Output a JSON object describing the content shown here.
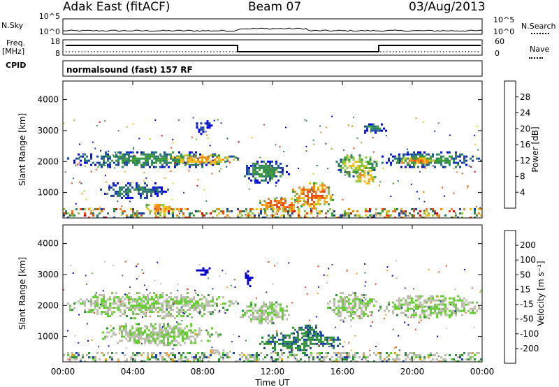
{
  "header": {
    "station": "Adak East (fitACF)",
    "beam": "Beam 07",
    "date": "03/Aug/2013"
  },
  "panels": {
    "nsky_label": "N.Sky",
    "nsearch_label": "N.Search",
    "noise_ticks": [
      "10^5",
      "10^0"
    ],
    "freq_label_1": "Freq.",
    "freq_label_2": "[MHz]",
    "freq_ticks": [
      "18",
      "8"
    ],
    "nave_label": "Nave",
    "nave_ticks": [
      "60",
      "0"
    ],
    "cpid_label": "CPID",
    "cpid_value": "normalsound (fast) 157 RF"
  },
  "colors": {
    "power": [
      "#0000ee",
      "#1a3fa8",
      "#2f7a6e",
      "#3a9a3a",
      "#8cc63f",
      "#f0c020",
      "#f08a10",
      "#f04a10",
      "#e00000"
    ],
    "velocity": [
      "#e00000",
      "#f04a10",
      "#f0a020",
      "#bdbdb0",
      "#bdbdb0",
      "#66cc33",
      "#2f8f3a",
      "#1a3fa8",
      "#0000cc"
    ],
    "ground_scatter": "#b8b8b0"
  },
  "chart_data": [
    {
      "type": "heatmap",
      "panel": "power",
      "ylabel": "Slant Range [km]",
      "ylim": [
        180,
        4600
      ],
      "yticks": [
        "1000",
        "2000",
        "3000",
        "4000"
      ],
      "colorbar_label": "Power [dB]",
      "colorbar_ticks": [
        "4",
        "8",
        "12",
        "16",
        "20",
        "24",
        "28"
      ],
      "colorbar_range": [
        0,
        32
      ],
      "echo_bands": [
        {
          "t": [
            0,
            10
          ],
          "range": [
            1800,
            2400
          ],
          "value": 12
        },
        {
          "t": [
            6,
            10
          ],
          "range": [
            1900,
            2300
          ],
          "value": 22
        },
        {
          "t": [
            2,
            6
          ],
          "range": [
            800,
            1400
          ],
          "value": 10
        },
        {
          "t": [
            4.5,
            6.5
          ],
          "range": [
            350,
            700
          ],
          "value": 24
        },
        {
          "t": [
            10,
            13
          ],
          "range": [
            1300,
            2100
          ],
          "value": 12
        },
        {
          "t": [
            11,
            14
          ],
          "range": [
            400,
            900
          ],
          "value": 26
        },
        {
          "t": [
            13,
            15.5
          ],
          "range": [
            500,
            1400
          ],
          "value": 26
        },
        {
          "t": [
            15.5,
            18
          ],
          "range": [
            1500,
            2300
          ],
          "value": 18
        },
        {
          "t": [
            16.5,
            18
          ],
          "range": [
            1300,
            1800
          ],
          "value": 22
        },
        {
          "t": [
            18,
            24
          ],
          "range": [
            1800,
            2400
          ],
          "value": 12
        },
        {
          "t": [
            19,
            21.5
          ],
          "range": [
            1900,
            2200
          ],
          "value": 24
        },
        {
          "t": [
            7.5,
            8.5
          ],
          "range": [
            2900,
            3400
          ],
          "value": 6
        },
        {
          "t": [
            17,
            18.5
          ],
          "range": [
            2900,
            3300
          ],
          "value": 10
        }
      ]
    },
    {
      "type": "heatmap",
      "panel": "velocity",
      "ylabel": "Slant Range [km]",
      "ylim": [
        180,
        4600
      ],
      "yticks": [
        "1000",
        "2000",
        "3000",
        "4000"
      ],
      "colorbar_label": "Velocity [m s⁻¹]",
      "colorbar_ticks": [
        "200",
        "100",
        "50",
        "15",
        "-15",
        "-50",
        "-100",
        "-200"
      ],
      "xlabel": "Time UT",
      "xticks": [
        "00:00",
        "04:00",
        "08:00",
        "12:00",
        "16:00",
        "20:00",
        "00:00"
      ],
      "xlim_hours": [
        0,
        24
      ],
      "echo_bands": [
        {
          "t": [
            0,
            10
          ],
          "range": [
            1600,
            2500
          ],
          "value": 0
        },
        {
          "t": [
            2,
            9
          ],
          "range": [
            700,
            1500
          ],
          "value": 0
        },
        {
          "t": [
            8.3,
            9.4
          ],
          "range": [
            400,
            650
          ],
          "value": -40
        },
        {
          "t": [
            11,
            16
          ],
          "range": [
            500,
            1200
          ],
          "value": 45
        },
        {
          "t": [
            13,
            15
          ],
          "range": [
            1000,
            1450
          ],
          "value": 45
        },
        {
          "t": [
            10,
            13
          ],
          "range": [
            1400,
            2200
          ],
          "value": 0
        },
        {
          "t": [
            15,
            18
          ],
          "range": [
            1500,
            2500
          ],
          "value": 0
        },
        {
          "t": [
            18,
            24
          ],
          "range": [
            1600,
            2400
          ],
          "value": 0
        },
        {
          "t": [
            10.3,
            10.8
          ],
          "range": [
            2600,
            3200
          ],
          "value": 150
        },
        {
          "t": [
            7.5,
            8.5
          ],
          "range": [
            3000,
            3300
          ],
          "value": 120
        }
      ]
    }
  ]
}
